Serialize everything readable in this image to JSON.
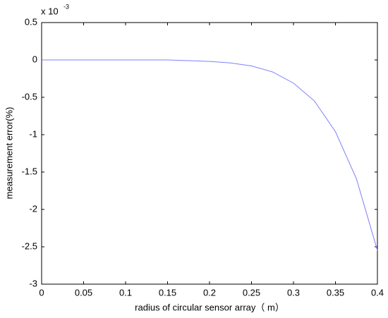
{
  "chart_data": {
    "type": "line",
    "xlabel": "radius of circular sensor array（ m）",
    "ylabel": "measurement error(%)",
    "y_multiplier": "x 10",
    "y_multiplier_exponent": "-3",
    "x": [
      0,
      0.025,
      0.05,
      0.075,
      0.1,
      0.125,
      0.15,
      0.175,
      0.2,
      0.225,
      0.25,
      0.275,
      0.3,
      0.325,
      0.35,
      0.375,
      0.4
    ],
    "values": [
      0,
      0,
      0,
      0,
      0,
      0,
      0,
      -0.01,
      -0.02,
      -0.04,
      -0.08,
      -0.16,
      -0.31,
      -0.55,
      -0.96,
      -1.59,
      -2.55
    ],
    "color": "#7f7fff",
    "xlim": [
      0,
      0.4
    ],
    "xticks": [
      0,
      0.05,
      0.1,
      0.15,
      0.2,
      0.25,
      0.3,
      0.35,
      0.4
    ],
    "ylim": [
      -3,
      0.5
    ],
    "yticks": [
      0.5,
      0,
      -0.5,
      -1,
      -1.5,
      -2,
      -2.5,
      -3
    ],
    "grid": false
  }
}
